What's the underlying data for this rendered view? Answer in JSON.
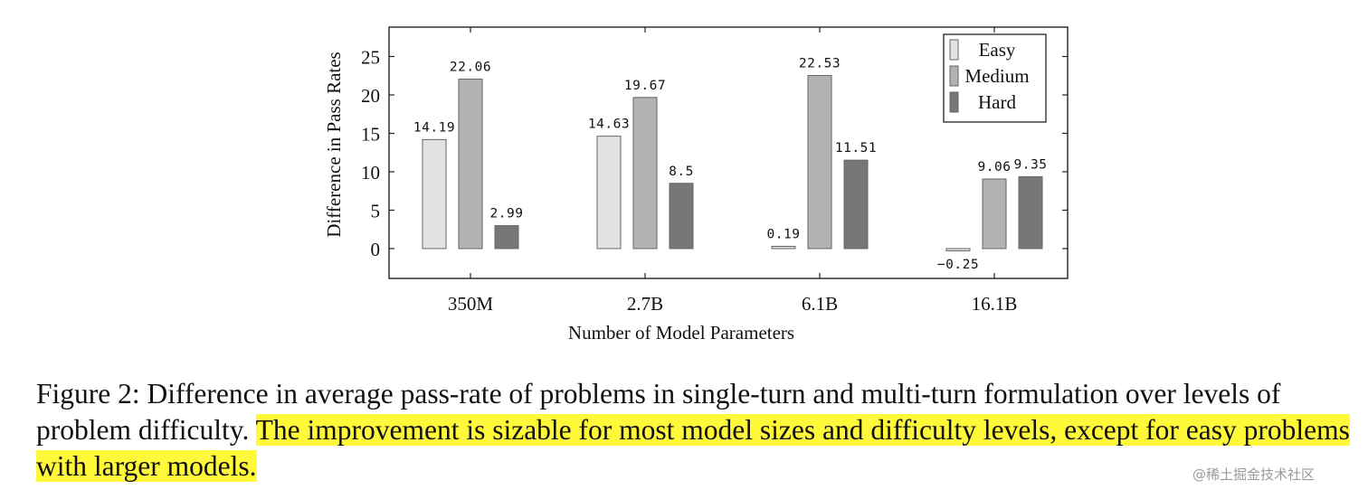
{
  "chart_data": {
    "type": "bar",
    "title": "",
    "xlabel": "Number of Model Parameters",
    "ylabel": "Difference in Pass Rates",
    "categories": [
      "350M",
      "2.7B",
      "6.1B",
      "16.1B"
    ],
    "ylim": [
      -4,
      29
    ],
    "yticks": [
      0,
      5,
      10,
      15,
      20,
      25
    ],
    "grid": false,
    "legend": "top-right",
    "series": [
      {
        "name": "Easy",
        "values": [
          14.19,
          14.63,
          0.19,
          -0.25
        ],
        "labels": [
          "14.19",
          "14.63",
          "0.19",
          "−0.25"
        ],
        "color": "#e2e2e2"
      },
      {
        "name": "Medium",
        "values": [
          22.06,
          19.67,
          22.53,
          9.06
        ],
        "labels": [
          "22.06",
          "19.67",
          "22.53",
          "9.06"
        ],
        "color": "#b3b3b3"
      },
      {
        "name": "Hard",
        "values": [
          2.99,
          8.5,
          11.51,
          9.35
        ],
        "labels": [
          "2.99",
          "8.5",
          "11.51",
          "9.35"
        ],
        "color": "#777777"
      }
    ]
  },
  "caption": {
    "plain": "Figure 2: Difference in average pass-rate of problems in single-turn and multi-turn formulation over levels of problem difficulty. ",
    "highlighted": "The improvement is sizable for most model sizes and difficulty levels, except for easy problems with larger models."
  },
  "watermark": "@稀土掘金技术社区"
}
